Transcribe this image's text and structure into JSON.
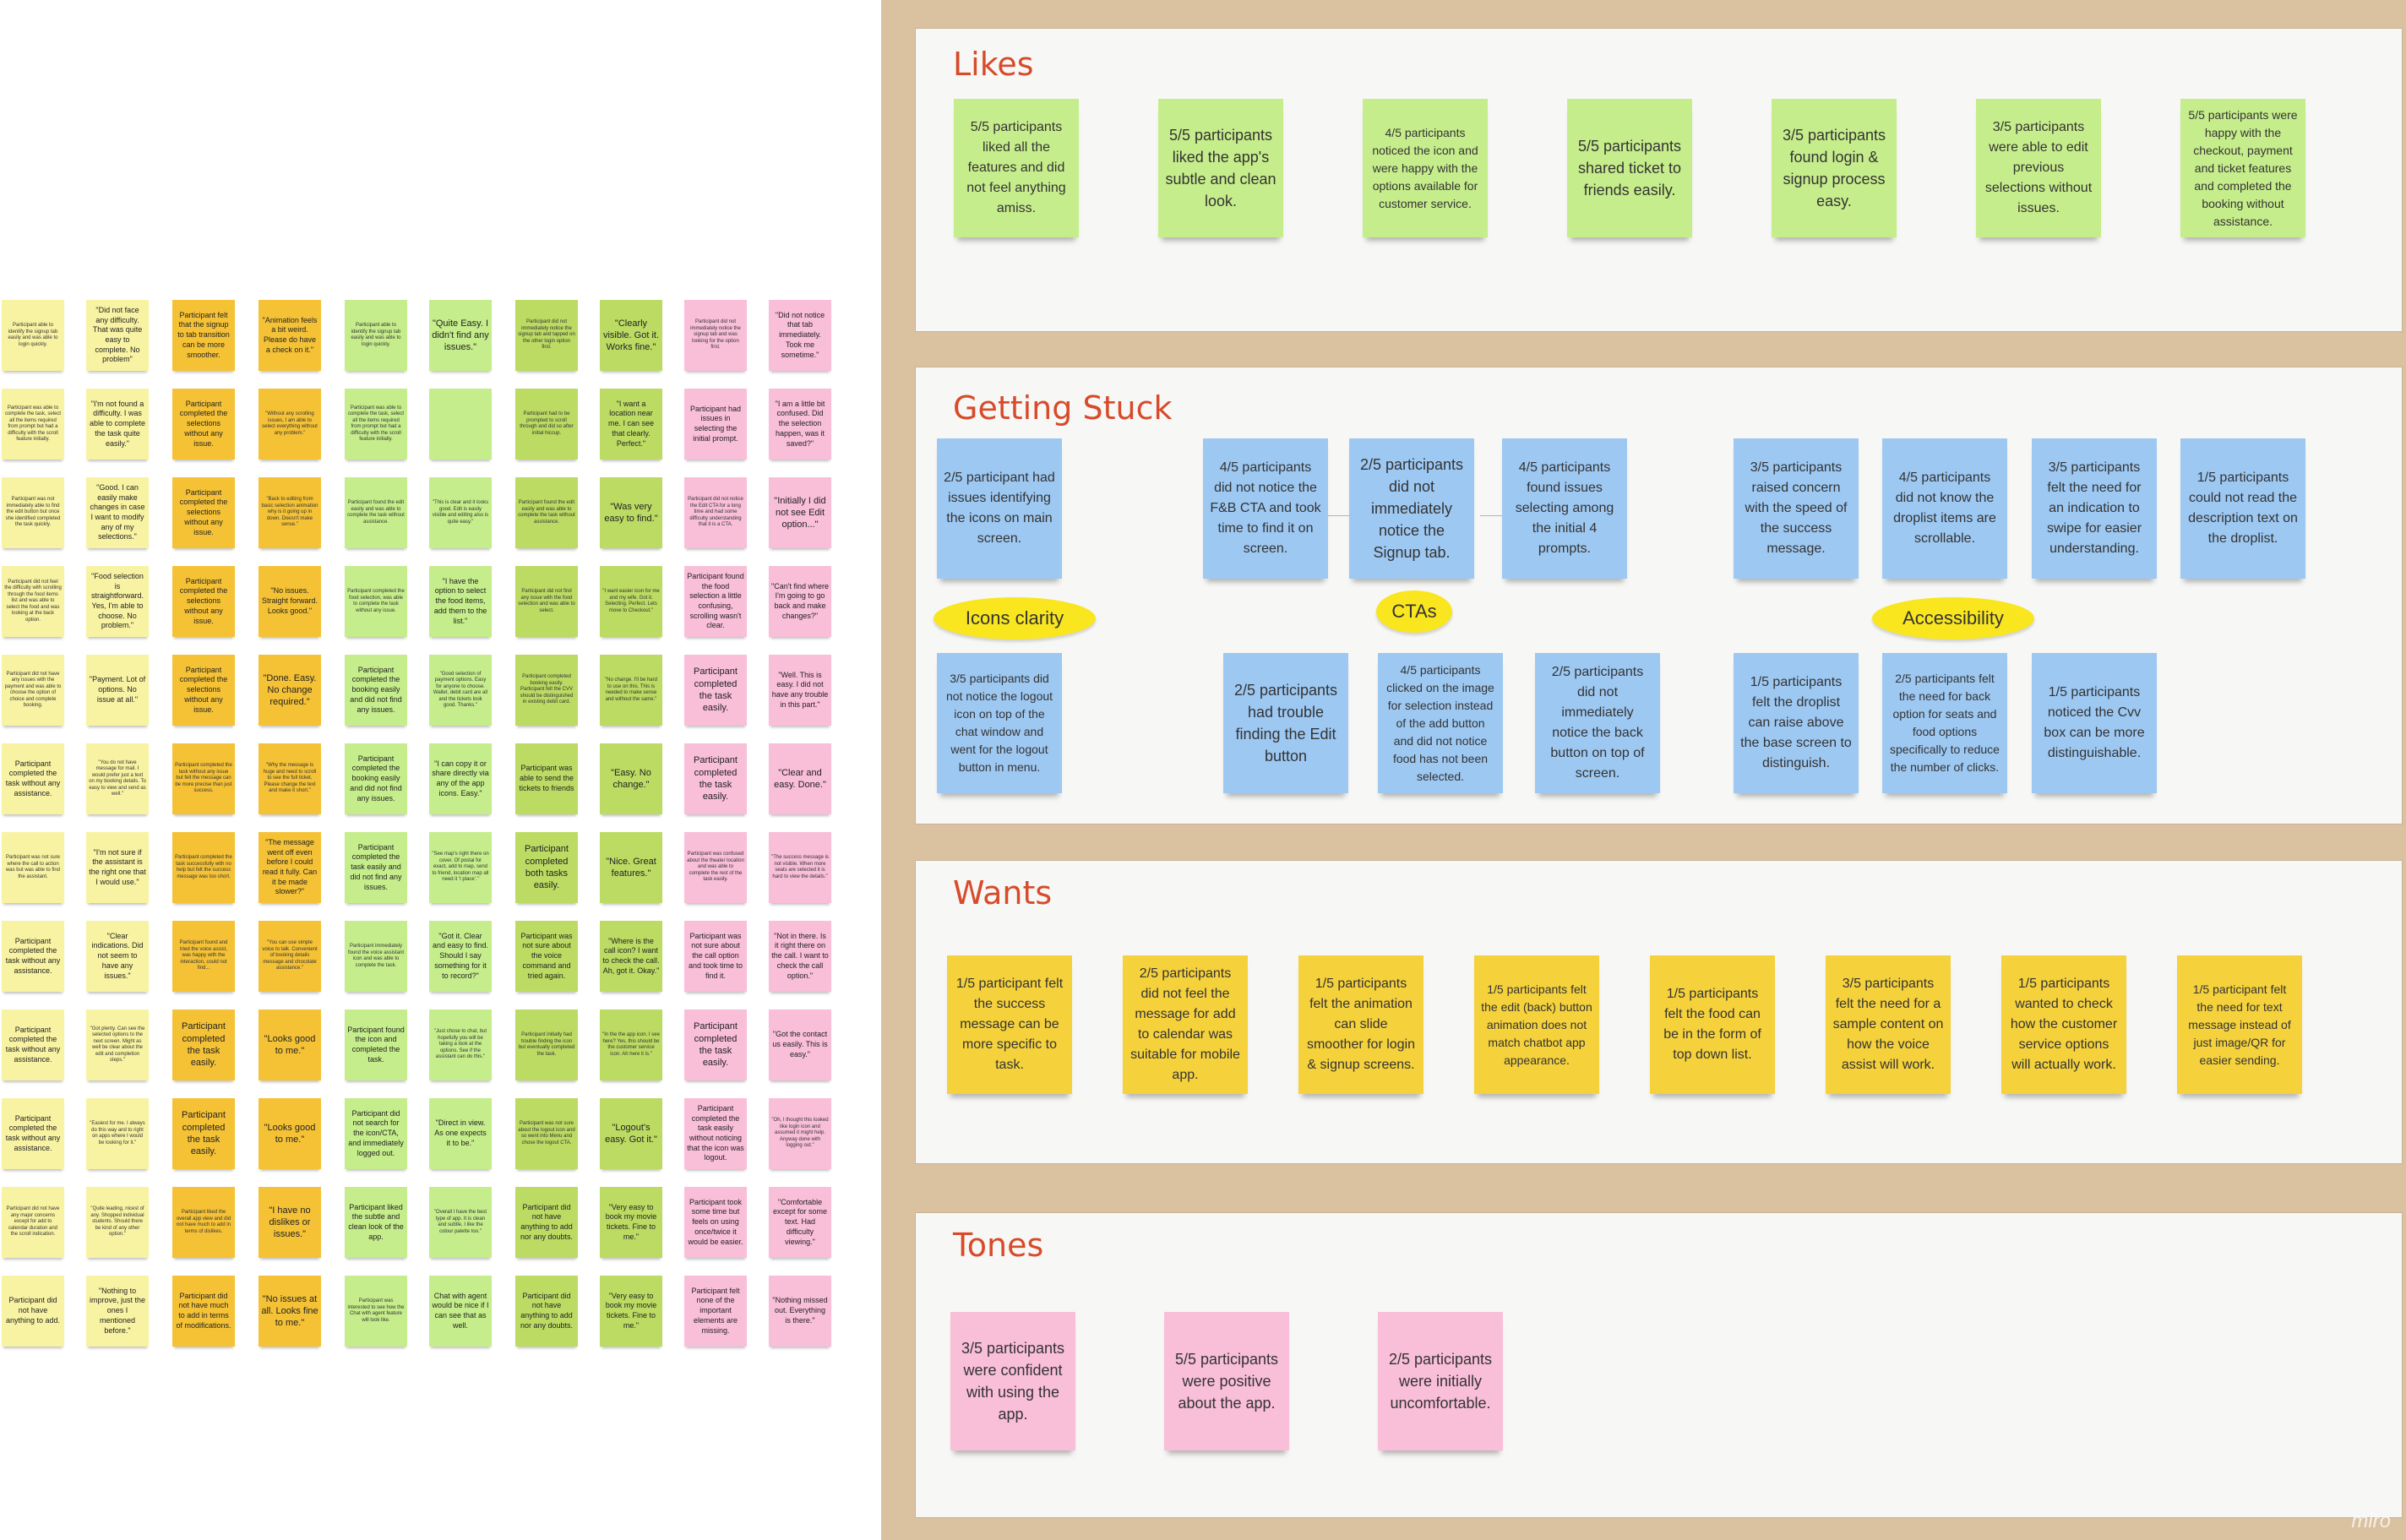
{
  "colors": {
    "lightyellow": "#f8f3a2",
    "orange": "#f5c236",
    "deepyellow": "#f5d13c",
    "lightgreen": "#c6ed8b",
    "green": "#bcdb63",
    "pink": "#f9bed8",
    "blue": "#9dc8f2",
    "frameTitle": "#d84a2a",
    "board": "#dac1a0"
  },
  "left_grid": {
    "columns": [
      "lightyellow",
      "lightyellow",
      "orange",
      "orange",
      "lightgreen",
      "lightgreen",
      "green",
      "green",
      "pink",
      "pink"
    ],
    "rows": [
      [
        "Participant able to identify the signup tab easily and was able to login quickly.",
        "\"Did not face any difficulty. That was quite easy to complete. No problem\"",
        "Participant felt that the signup to tab transition can be more smoother.",
        "\"Animation feels a bit weird. Please do have a check on it.\"",
        "Participant able to identify the signup tab easily and was able to login quickly.",
        "\"Quite Easy. I didn't find any issues.\"",
        "Participant did not immediately notice the signup tab and tapped on the other login option first.",
        "\"Clearly visible. Got it. Works fine.\"",
        "Participant did not immediately notice the signup tab and was looking for the option first.",
        "\"Did not notice that tab immediately. Took me sometime.\""
      ],
      [
        "Participant was able to complete the task, select all the items required from prompt but had a difficulty with the scroll feature initially.",
        "\"I'm not found a difficulty. I was able to complete the task quite easily.\"",
        "Participant completed the selections without any issue.",
        "\"Without any scrolling issues, I am able to select everything without any problem.\"",
        "Participant was able to complete the task, select all the items required from prompt but had a difficulty with the scroll feature initially.",
        "",
        "Participant had to be prompted to scroll through and did so after initial hiccup.",
        "\"I want a location near me. I can see that clearly. Perfect.\"",
        "Participant had issues in selecting the initial prompt.",
        "\"I am a little bit confused. Did the selection happen, was it saved?\""
      ],
      [
        "Participant was not immediately able to find the edit button but once she identified completed the task quickly.",
        "\"Good. I can easily make changes in case I want to modify any of my selections.\"",
        "Participant completed the selections without any issue.",
        "\"Back to editing from basic selection animation why is it going up in down. Doesn't make sense.\"",
        "Participant found the edit easily and was able to complete the task without assistance.",
        "\"This is clear and it looks good. Edit is easily visible and editing also is quite easy.\"",
        "Participant found the edit easily and was able to complete the task without assistance.",
        "\"Was very easy to find.\"",
        "Participant did not notice the Edit CTA for a long time and had some difficulty understanding that it is a CTA.",
        "\"Initially I did not see Edit option...\""
      ],
      [
        "Participant did not feel the difficulty with scrolling through the food items list and was able to select the food and was looking at the back option.",
        "\"Food selection is straightforward. Yes, I'm able to choose. No problem.\"",
        "Participant completed the selections without any issue.",
        "\"No issues. Straight forward. Looks good.\"",
        "Participant completed the food selection, was able to complete the task without any issue.",
        "\"I have the option to select the food items, add them to the list.\"",
        "Participant did not find any issue with the food selection and was able to select.",
        "\"I want easier icon for me and my wife. Got it. Selecting. Perfect. Lets move to Checkout.\"",
        "Participant found the food selection a little confusing, scrolling wasn't clear.",
        "\"Can't find where I'm going to go back and make changes?\""
      ],
      [
        "Participant did not have any issues with the payment and was able to choose the option of choice and complete booking.",
        "\"Payment. Lot of options. No issue at all.\"",
        "Participant completed the selections without any issue.",
        "\"Done. Easy. No change required.\"",
        "Participant completed the booking easily and did not find any issues.",
        "\"Good selection of payment options. Easy for anyone to choose. Wallet, debit card are all and the tickets look good. Thanks.\"",
        "Participant completed booking easily. Participant felt the CVV should be distinguished in existing debit card.",
        "\"No change. I'll be hard to use on this. This is needed to make sense and without the same.\"",
        "Participant completed the task easily.",
        "\"Well. This is easy. I did not have any trouble in this part.\""
      ],
      [
        "Participant completed the task without any assistance.",
        "\"You do not have message for mail. I would prefer just a text on my booking details. To easy to view and send as well.\"",
        "Participant completed the task without any issue but felt the message can be more precise than just success.",
        "\"Why the message is huge and need to scroll to see the full ticket. Please change the text and make it short.\"",
        "Participant completed the booking easily and did not find any issues.",
        "\"I can copy it or share directly via any of the app icons. Easy.\"",
        "Participant was able to send the tickets to friends",
        "\"Easy. No change.\"",
        "Participant completed the task easily.",
        "\"Clear and easy. Done.\""
      ],
      [
        "Participant was not sure where the call to action was but was able to find the assistant.",
        "\"I'm not sure if the assistant is the right one that I would use.\"",
        "Participant completed the task successfully with no help but felt the success message was too short.",
        "\"The message went off even before I could read it fully. Can it be made slower?\"",
        "Participant completed the task easily and did not find any issues.",
        "\"See map's right there on cover. Of postal for exact, add to map, send to friend, location map all need it 'I place'.\"",
        "Participant completed both tasks easily.",
        "\"Nice. Great features.\"",
        "Participant was confused about the theater location and was able to complete the rest of the task easily.",
        "\"The success message is not visible. When more seats are selected it is hard to view the details.\""
      ],
      [
        "Participant completed the task without any assistance.",
        "\"Clear indications. Did not seem to have any issues.\"",
        "Participant found and tried the voice assist, was happy with the interaction, could not find...",
        "\"You can use simple voice to talk. Convenient of booking details message and chocolate assistance.\"",
        "Participant immediately found the voice assistant icon and was able to complete the task.",
        "\"Got it. Clear and easy to find. Should I say something for it to record?\"",
        "Participant was not sure about the voice command and tried again.",
        "\"Where is the call icon? I want to check the call. Ah, got it. Okay.\"",
        "Participant was not sure about the call option and took time to find it.",
        "\"Not in there. Is it right there on the call. I want to check the call option.\""
      ],
      [
        "Participant completed the task without any assistance.",
        "\"Got plenty. Can see the selected options to the next screen. Might as well be clear about the edit and completion steps.\"",
        "Participant completed the task easily.",
        "\"Looks good to me.\"",
        "Participant found the icon and completed the task.",
        "\"Just chose to chat, but hopefully you will be taking a look at the options. See if the assistant can do this.\"",
        "Participant initially had trouble finding the icon but eventually completed the task.",
        "\"In the the app icon. I see here? Yes, this should be the customer service icon. Ah here it is.\"",
        "Participant completed the task easily.",
        "\"Got the contact us easily. This is easy.\""
      ],
      [
        "Participant completed the task without any assistance.",
        "\"Easiest for me. I always do this way and to right on apps where I would be looking for it.\"",
        "Participant completed the task easily.",
        "\"Looks good to me.\"",
        "Participant did not search for the icon/CTA, and immediately logged out.",
        "\"Direct in view. As one expects it to be.\"",
        "Participant was not sure about the logout icon and so went into Menu and chose the logout CTA.",
        "\"Logout's easy. Got it.\"",
        "Participant completed the task easily without noticing that the icon was logout.",
        "\"Oh, I thought this looked like login icon and assumed it might help. Anyway done with logging out.\""
      ],
      [
        "Participant did not have any major concerns except for add to calendar duration and the scroll indication.",
        "\"Quite leading, nicest of any. Shopped individual students. Should there be kind of any other option.\"",
        "Participant liked the overall app view and did not have much to add in terms of dislikes.",
        "\"I have no dislikes or issues.\"",
        "Participant liked the subtle and clean look of the app.",
        "\"Overall I have the best type of app. It is clean and subtle, I like the colour palette too.\"",
        "Participant did not have anything to add nor any doubts.",
        "\"Very easy to book my movie tickets. Fine to me.\"",
        "Participant took some time but feels on using once/twice it would be easier.",
        "\"Comfortable except for some text. Had difficulty viewing.\""
      ],
      [
        "Participant did not have anything to add.",
        "\"Nothing to improve, just the ones I mentioned before.\"",
        "Participant did not have much to add in terms of modifications.",
        "\"No issues at all. Looks fine to me.\"",
        "Participant was interested to see how the Chat with agent feature will look like.",
        "Chat with agent would be nice if I can see that as well.",
        "Participant did not have anything to add nor any doubts.",
        "\"Very easy to book my movie tickets. Fine to me.\"",
        "Participant felt none of the important elements are missing.",
        "\"Nothing missed out. Everything is there.\""
      ]
    ]
  },
  "frames": {
    "likes": {
      "title": "Likes",
      "notes": [
        "5/5 participants liked all the features and did not feel anything amiss.",
        "5/5 participants liked the app's subtle and clean look.",
        "4/5 participants noticed the icon and were happy with the options available for customer service.",
        "5/5 participants shared ticket to friends easily.",
        "3/5 participants found login & signup process easy.",
        "3/5 participants were able to edit previous selections without issues.",
        "5/5 participants were happy with the checkout, payment and ticket features and completed the booking without assistance."
      ]
    },
    "stuck": {
      "title": "Getting Stuck",
      "tags": [
        "Icons clarity",
        "CTAs",
        "Accessibility"
      ],
      "icons_clarity": [
        "2/5 participant had issues identifying the icons on main screen.",
        "3/5 participants did not notice the logout icon on top of the chat window and went for the logout button in menu."
      ],
      "ctas_top": [
        "4/5 participants did not notice the F&B CTA and took time to find it on screen.",
        "2/5 participants did not immediately notice the Signup tab.",
        "4/5 participants found issues selecting among the initial 4 prompts."
      ],
      "ctas_bottom": [
        "2/5 participants had trouble finding the Edit button",
        "4/5 participants clicked on the image for selection instead of the add button and did not notice food has not been selected.",
        "2/5 participants did not immediately notice the back button on top of screen."
      ],
      "access_top": [
        "3/5 participants raised concern with the speed of the success message.",
        "4/5 participants did not know the droplist items are scrollable.",
        "3/5 participants felt the need for an indication to swipe for easier understanding.",
        "1/5 participants could not read the description text on the droplist."
      ],
      "access_bottom": [
        "1/5 participants felt the droplist can raise above the base screen to distinguish.",
        "2/5 participants felt the need for back option for seats and food options specifically to reduce the number of clicks.",
        "1/5 participants noticed the Cvv box can be more distinguishable."
      ]
    },
    "wants": {
      "title": "Wants",
      "notes": [
        "1/5 participant felt the success message can be more specific to task.",
        "2/5 participants did not feel the message for add to calendar was suitable for mobile app.",
        "1/5 participants felt the animation can slide smoother for login & signup screens.",
        "1/5 participants felt the edit (back) button animation does not match chatbot app appearance.",
        "1/5 participants felt the food can be in the form of top down list.",
        "3/5 participants felt the need for a sample content on how the voice assist will work.",
        "1/5 participants wanted to check how the customer service options will actually work.",
        "1/5 participant felt the need for text message instead of just image/QR for easier sending."
      ]
    },
    "tones": {
      "title": "Tones",
      "notes": [
        "3/5 participants were confident with using the app.",
        "5/5 participants were positive about the app.",
        "2/5 participants were initially uncomfortable."
      ]
    }
  },
  "watermark": "miro"
}
